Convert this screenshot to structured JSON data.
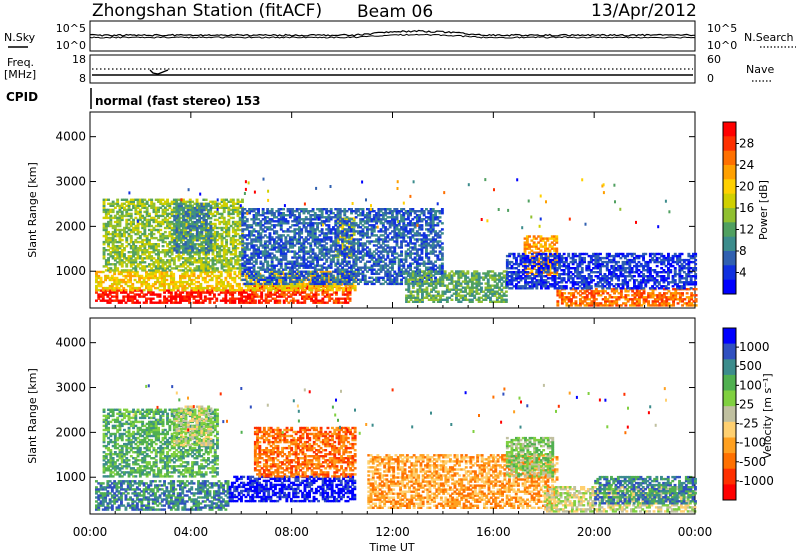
{
  "header": {
    "title": "Zhongshan Station (fitACF)",
    "beam": "Beam 06",
    "date": "13/Apr/2012"
  },
  "strip_panels": {
    "nsky_label": "N.Sky",
    "nsky_ticks": [
      "10^5",
      "10^0"
    ],
    "nsearch_label": "N.Search",
    "nsearch_ticks": [
      "10^5",
      "10^0"
    ],
    "freq_label_1": "Freq.",
    "freq_label_2": "[MHz]",
    "freq_ticks": [
      "18",
      "8"
    ],
    "nave_label": "Nave",
    "nave_ticks": [
      "60",
      "0"
    ],
    "cpid_label": "CPID",
    "cpid_text": "normal (fast stereo) 153"
  },
  "chart_data": [
    {
      "type": "heatmap",
      "name": "power-panel",
      "ylabel": "Slant Range [km]",
      "ylim": [
        180,
        4550
      ],
      "yticks": [
        "4000",
        "3000",
        "2000",
        "1000"
      ],
      "ytick_values": [
        4000,
        3000,
        2000,
        1000
      ],
      "x_range_hours": [
        0,
        24
      ],
      "colorbar": {
        "label": "Power [dB]",
        "tick_labels": [
          "28",
          "24",
          "20",
          "16",
          "12",
          "8",
          "4"
        ],
        "colors": [
          "#ff0000",
          "#ff3000",
          "#ff7000",
          "#ffa000",
          "#ffd000",
          "#d0d000",
          "#90c030",
          "#50a060",
          "#3c8c8c",
          "#3060b0",
          "#1030e0",
          "#0000ff"
        ]
      },
      "regions": [
        {
          "t0": 0.2,
          "t1": 6.5,
          "r0": 280,
          "r1": 560,
          "level": 0
        },
        {
          "t0": 6.3,
          "t1": 10.3,
          "r0": 280,
          "r1": 700,
          "level": 1
        },
        {
          "t0": 0.2,
          "t1": 10.5,
          "r0": 560,
          "r1": 1000,
          "level": 4
        },
        {
          "t0": 0.5,
          "t1": 6.0,
          "r0": 1000,
          "r1": 2600,
          "level": 6
        },
        {
          "t0": 3.3,
          "t1": 4.8,
          "r0": 1400,
          "r1": 2500,
          "level": 8
        },
        {
          "t0": 9.7,
          "t1": 10.5,
          "r0": 1300,
          "r1": 2200,
          "level": 5
        },
        {
          "t0": 6.0,
          "t1": 14.0,
          "r0": 700,
          "r1": 2400,
          "level": 9
        },
        {
          "t0": 12.5,
          "t1": 16.5,
          "r0": 300,
          "r1": 1000,
          "level": 7
        },
        {
          "t0": 17.2,
          "t1": 18.5,
          "r0": 900,
          "r1": 1800,
          "level": 3
        },
        {
          "t0": 18.5,
          "t1": 24.0,
          "r0": 220,
          "r1": 600,
          "level": 2
        },
        {
          "t0": 16.5,
          "t1": 24.0,
          "r0": 600,
          "r1": 1400,
          "level": 10
        }
      ]
    },
    {
      "type": "heatmap",
      "name": "velocity-panel",
      "ylabel": "Slant Range [km]",
      "ylim": [
        180,
        4550
      ],
      "yticks": [
        "4000",
        "3000",
        "2000",
        "1000"
      ],
      "ytick_values": [
        4000,
        3000,
        2000,
        1000
      ],
      "x_range_hours": [
        0,
        24
      ],
      "xlabel": "Time UT",
      "xticks": [
        "00:00",
        "04:00",
        "08:00",
        "12:00",
        "16:00",
        "20:00",
        "00:00"
      ],
      "xtick_values": [
        0,
        4,
        8,
        12,
        16,
        20,
        24
      ],
      "colorbar": {
        "label": "Velocity [m s⁻¹]",
        "tick_labels": [
          "1000",
          "500",
          "100",
          "25",
          "-25",
          "-100",
          "-500",
          "-1000"
        ],
        "colors": [
          "#0000ff",
          "#3050c0",
          "#3c8c8c",
          "#50b050",
          "#80d040",
          "#c0c0a0",
          "#ffd070",
          "#ffa020",
          "#ff7000",
          "#ff3000",
          "#ff0000"
        ]
      },
      "regions": [
        {
          "t0": 0.2,
          "t1": 5.5,
          "r0": 260,
          "r1": 900,
          "level": 2
        },
        {
          "t0": 5.5,
          "t1": 10.5,
          "r0": 450,
          "r1": 1000,
          "level": 0
        },
        {
          "t0": 0.5,
          "t1": 5.0,
          "r0": 1000,
          "r1": 2500,
          "level": 3
        },
        {
          "t0": 3.3,
          "t1": 4.8,
          "r0": 1700,
          "r1": 2600,
          "level": 5
        },
        {
          "t0": 6.5,
          "t1": 10.5,
          "r0": 1000,
          "r1": 2100,
          "level": 8
        },
        {
          "t0": 11.0,
          "t1": 18.5,
          "r0": 300,
          "r1": 1500,
          "level": 7
        },
        {
          "t0": 16.5,
          "t1": 18.3,
          "r0": 1000,
          "r1": 1900,
          "level": 4
        },
        {
          "t0": 18.0,
          "t1": 24.0,
          "r0": 220,
          "r1": 800,
          "level": 5
        },
        {
          "t0": 20.0,
          "t1": 24.0,
          "r0": 400,
          "r1": 1000,
          "level": 2
        }
      ]
    }
  ]
}
